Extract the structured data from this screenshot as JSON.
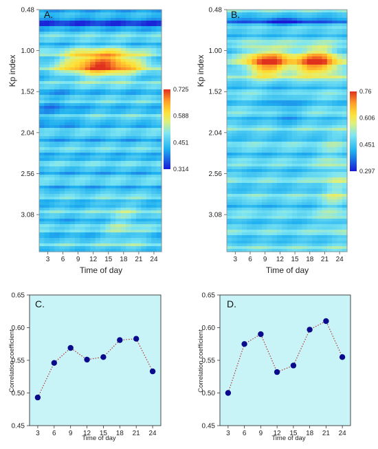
{
  "chart_data": [
    {
      "type": "heatmap",
      "panel_label": "A.",
      "xlabel": "Time of day",
      "ylabel": "Kp index",
      "x_ticks": [
        "3",
        "6",
        "9",
        "12",
        "15",
        "18",
        "21",
        "24"
      ],
      "y_ticks": [
        "0.48",
        "1.00",
        "1.52",
        "2.04",
        "2.56",
        "3.08"
      ],
      "xlim": [
        1.3,
        25.5
      ],
      "ylim": [
        3.55,
        0.48
      ],
      "colorbar": {
        "min": 0.314,
        "max": 0.725,
        "ticks": [
          "0.725",
          "0.588",
          "0.451",
          "0.314"
        ]
      },
      "features": [
        {
          "kp": 1.14,
          "t": 13.5,
          "value": 0.7,
          "note": "maximum band"
        },
        {
          "kp": 0.64,
          "t": 13.0,
          "value": 0.34,
          "note": "minimum band"
        }
      ]
    },
    {
      "type": "heatmap",
      "panel_label": "B.",
      "xlabel": "Time of day",
      "ylabel": "Kp index",
      "x_ticks": [
        "3",
        "6",
        "9",
        "12",
        "15",
        "18",
        "21",
        "24"
      ],
      "y_ticks": [
        "0.48",
        "1.00",
        "1.52",
        "2.04",
        "2.56",
        "3.08"
      ],
      "xlim": [
        1.3,
        25.5
      ],
      "ylim": [
        3.55,
        0.48
      ],
      "colorbar": {
        "min": 0.297,
        "max": 0.76,
        "ticks": [
          "0.76",
          "0.606",
          "0.451",
          "0.297"
        ]
      },
      "features": [
        {
          "kp": 1.14,
          "t": 9.5,
          "value": 0.74,
          "note": "maximum lobe"
        },
        {
          "kp": 1.14,
          "t": 19.5,
          "value": 0.74,
          "note": "maximum lobe"
        },
        {
          "kp": 0.64,
          "t": 12.5,
          "value": 0.3,
          "note": "minimum band"
        }
      ]
    },
    {
      "type": "line",
      "panel_label": "C.",
      "xlabel": "Time of day",
      "ylabel": "Correlation coefficient",
      "x": [
        3,
        6,
        9,
        12,
        15,
        18,
        21,
        24
      ],
      "y": [
        0.493,
        0.546,
        0.569,
        0.551,
        0.555,
        0.581,
        0.583,
        0.533
      ],
      "xlim": [
        1.5,
        25.5
      ],
      "ylim": [
        0.45,
        0.65
      ],
      "x_ticks": [
        "3",
        "6",
        "9",
        "12",
        "15",
        "18",
        "21",
        "24"
      ],
      "y_ticks": [
        "0.45",
        "0.50",
        "0.55",
        "0.60",
        "0.65"
      ],
      "line_style": "dotted",
      "colors": {
        "background": "#c8f4f7",
        "marker": "#0a0a8c",
        "line": "#b22222"
      }
    },
    {
      "type": "line",
      "panel_label": "D.",
      "xlabel": "Time of day",
      "ylabel": "Correlation coefficient",
      "x": [
        3,
        6,
        9,
        12,
        15,
        18,
        21,
        24
      ],
      "y": [
        0.5,
        0.575,
        0.59,
        0.532,
        0.542,
        0.597,
        0.61,
        0.555
      ],
      "xlim": [
        1.5,
        25.5
      ],
      "ylim": [
        0.45,
        0.65
      ],
      "x_ticks": [
        "3",
        "6",
        "9",
        "12",
        "15",
        "18",
        "21",
        "24"
      ],
      "y_ticks": [
        "0.45",
        "0.50",
        "0.55",
        "0.60",
        "0.65"
      ],
      "line_style": "dotted",
      "colors": {
        "background": "#c8f4f7",
        "marker": "#0a0a8c",
        "line": "#b22222"
      }
    }
  ]
}
